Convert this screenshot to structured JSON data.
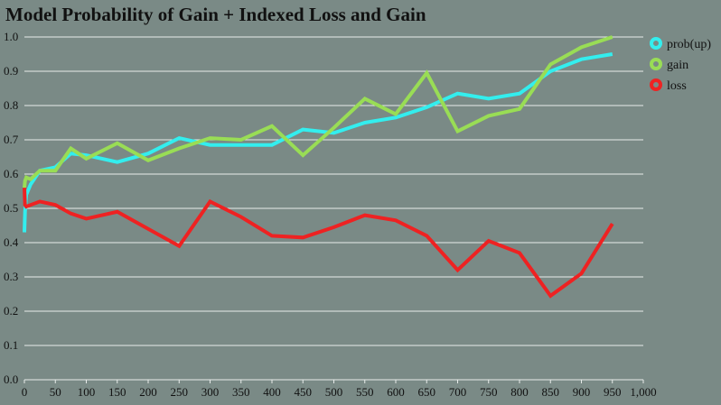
{
  "chart_data": {
    "type": "line",
    "title": "Model Probability of Gain + Indexed Loss and Gain",
    "xlabel": "",
    "ylabel": "",
    "xlim": [
      0,
      1000
    ],
    "ylim": [
      0,
      1.0
    ],
    "x_ticks": [
      0,
      50,
      100,
      150,
      200,
      250,
      300,
      350,
      400,
      450,
      500,
      550,
      600,
      650,
      700,
      750,
      800,
      850,
      900,
      950,
      1000
    ],
    "x_tick_labels": [
      "0",
      "50",
      "100",
      "150",
      "200",
      "250",
      "300",
      "350",
      "400",
      "450",
      "500",
      "550",
      "600",
      "650",
      "700",
      "750",
      "800",
      "850",
      "900",
      "950",
      "1,000"
    ],
    "y_ticks": [
      0,
      0.1,
      0.2,
      0.3,
      0.4,
      0.5,
      0.6,
      0.7,
      0.8,
      0.9,
      1.0
    ],
    "y_tick_labels": [
      "0.0",
      "0.1",
      "0.2",
      "0.3",
      "0.4",
      "0.5",
      "0.6",
      "0.7",
      "0.8",
      "0.9",
      "1.0"
    ],
    "grid": "horizontal",
    "legend_position": "top-right",
    "series": [
      {
        "name": "prob(up)",
        "color": "#33eeee",
        "x": [
          0,
          1,
          3,
          10,
          25,
          50,
          75,
          100,
          150,
          200,
          250,
          300,
          350,
          400,
          450,
          500,
          550,
          600,
          650,
          700,
          750,
          800,
          850,
          900,
          950
        ],
        "y": [
          0.43,
          0.49,
          0.54,
          0.57,
          0.61,
          0.62,
          0.66,
          0.655,
          0.635,
          0.66,
          0.705,
          0.685,
          0.685,
          0.685,
          0.73,
          0.72,
          0.75,
          0.765,
          0.795,
          0.835,
          0.82,
          0.835,
          0.9,
          0.935,
          0.95
        ]
      },
      {
        "name": "gain",
        "color": "#99dd55",
        "x": [
          0,
          1,
          3,
          10,
          25,
          50,
          75,
          100,
          150,
          200,
          250,
          300,
          350,
          400,
          450,
          500,
          550,
          600,
          650,
          700,
          750,
          800,
          850,
          900,
          950
        ],
        "y": [
          0.56,
          0.58,
          0.59,
          0.585,
          0.61,
          0.61,
          0.675,
          0.645,
          0.69,
          0.64,
          0.675,
          0.705,
          0.7,
          0.74,
          0.655,
          0.735,
          0.82,
          0.775,
          0.895,
          0.725,
          0.77,
          0.79,
          0.92,
          0.97,
          1.0
        ]
      },
      {
        "name": "loss",
        "color": "#ee2222",
        "x": [
          0,
          1,
          3,
          10,
          25,
          50,
          75,
          100,
          150,
          200,
          250,
          300,
          350,
          400,
          450,
          500,
          550,
          600,
          650,
          700,
          750,
          800,
          850,
          900,
          950
        ],
        "y": [
          0.56,
          0.51,
          0.505,
          0.51,
          0.52,
          0.51,
          0.485,
          0.47,
          0.49,
          0.44,
          0.39,
          0.52,
          0.475,
          0.42,
          0.415,
          0.445,
          0.48,
          0.465,
          0.42,
          0.32,
          0.405,
          0.37,
          0.245,
          0.31,
          0.455
        ]
      }
    ]
  }
}
